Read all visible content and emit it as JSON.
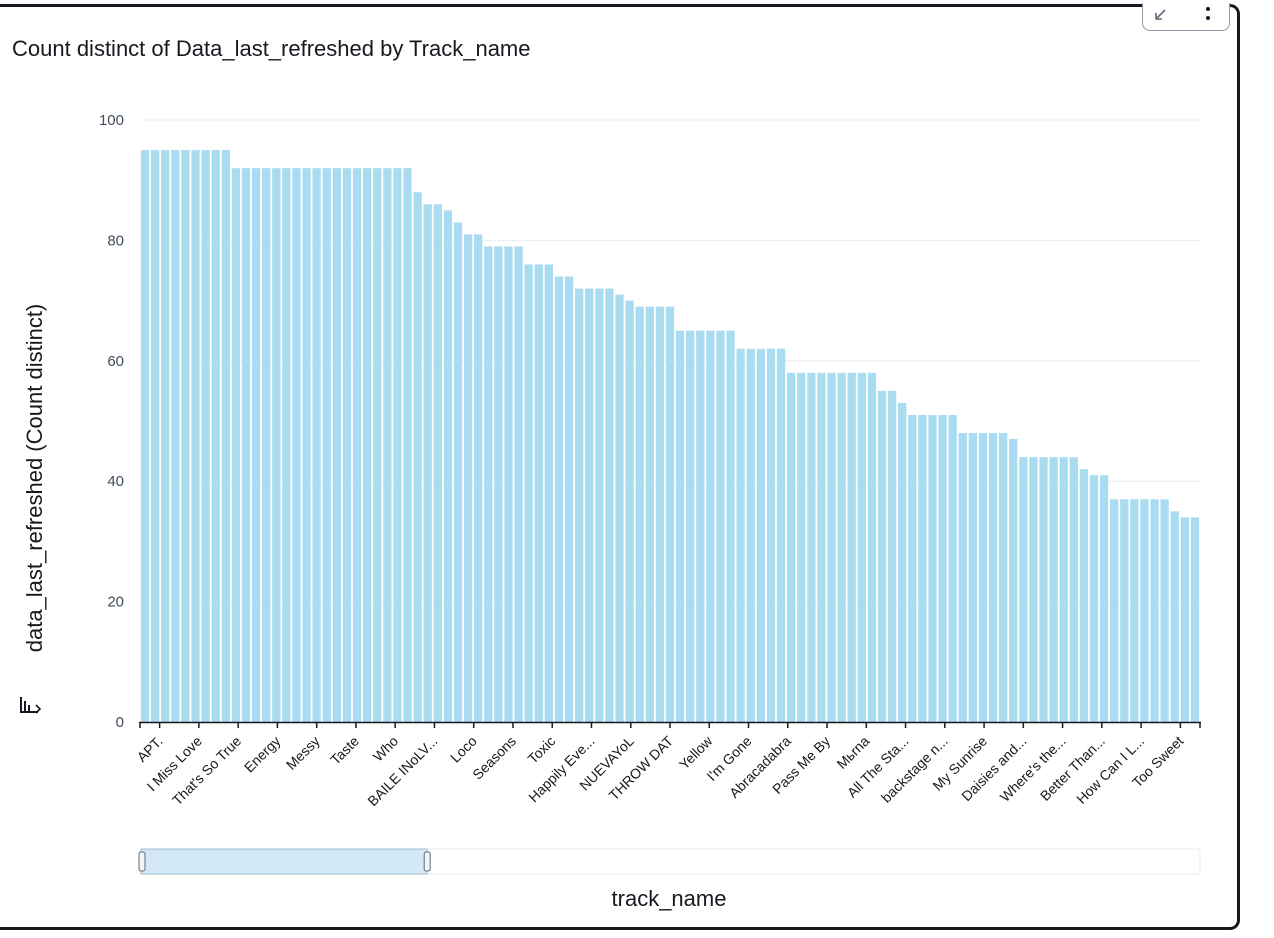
{
  "colors": {
    "bar": "#aadcf1",
    "grid": "#e9ebed",
    "axis": "#16191f",
    "brush_fill": "#d4e9f6",
    "brush_border": "#9bbdd3"
  },
  "toolbar": {
    "collapse_icon": "collapse-arrow-icon",
    "menu_icon": "vertical-ellipsis-icon"
  },
  "chart_data": {
    "type": "bar",
    "title": "Count distinct of Data_last_refreshed by Track_name",
    "xlabel": "track_name",
    "ylabel": "data_last_refreshed (Count distinct)",
    "ylim": [
      0,
      100
    ],
    "yticks": [
      0,
      20,
      40,
      60,
      80,
      100
    ],
    "grid": true,
    "legend": "none",
    "visible_category_labels": [
      "APT.",
      "I Miss Love",
      "That's So True",
      "Energy",
      "Messy",
      "Taste",
      "Who",
      "BAILE INoLV...",
      "Loco",
      "Seasons",
      "Toxic",
      "Happily Eve...",
      "NUEVAYoL",
      "THROW DAT",
      "Yellow",
      "I'm Gone",
      "Abracadabra",
      "Pass Me By",
      "Mьrna",
      "All The Sta...",
      "backstage n...",
      "My Sunrise",
      "Daisies and...",
      "Where's the...",
      "Better Than...",
      "How Can I L...",
      "Too Sweet"
    ],
    "values": [
      95,
      95,
      95,
      95,
      95,
      95,
      95,
      95,
      95,
      92,
      92,
      92,
      92,
      92,
      92,
      92,
      92,
      92,
      92,
      92,
      92,
      92,
      92,
      92,
      92,
      92,
      92,
      88,
      86,
      86,
      85,
      83,
      81,
      81,
      79,
      79,
      79,
      79,
      76,
      76,
      76,
      74,
      74,
      72,
      72,
      72,
      72,
      71,
      70,
      69,
      69,
      69,
      69,
      65,
      65,
      65,
      65,
      65,
      65,
      62,
      62,
      62,
      62,
      62,
      58,
      58,
      58,
      58,
      58,
      58,
      58,
      58,
      58,
      55,
      55,
      53,
      51,
      51,
      51,
      51,
      51,
      48,
      48,
      48,
      48,
      48,
      47,
      44,
      44,
      44,
      44,
      44,
      44,
      42,
      41,
      41,
      37,
      37,
      37,
      37,
      37,
      37,
      35,
      34,
      34
    ],
    "brush_range_fraction": [
      0.0,
      0.27
    ]
  }
}
